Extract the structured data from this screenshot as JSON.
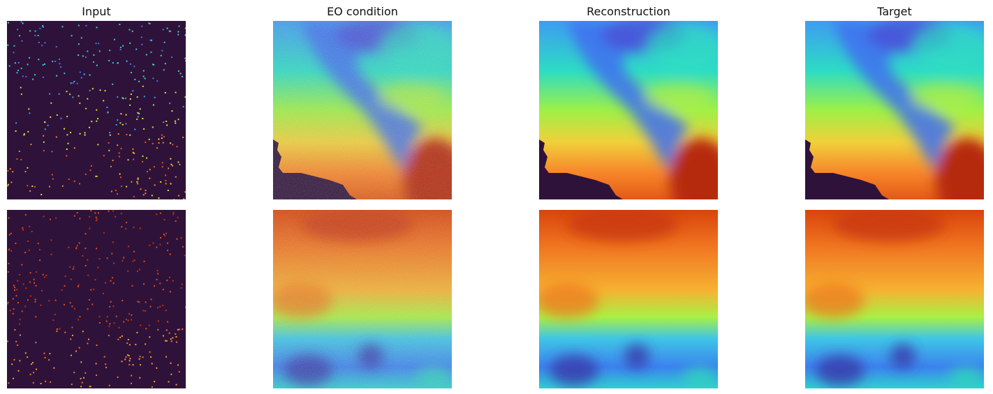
{
  "columns": {
    "titles": [
      "Input",
      "EO condition",
      "Reconstruction",
      "Target"
    ]
  }
}
